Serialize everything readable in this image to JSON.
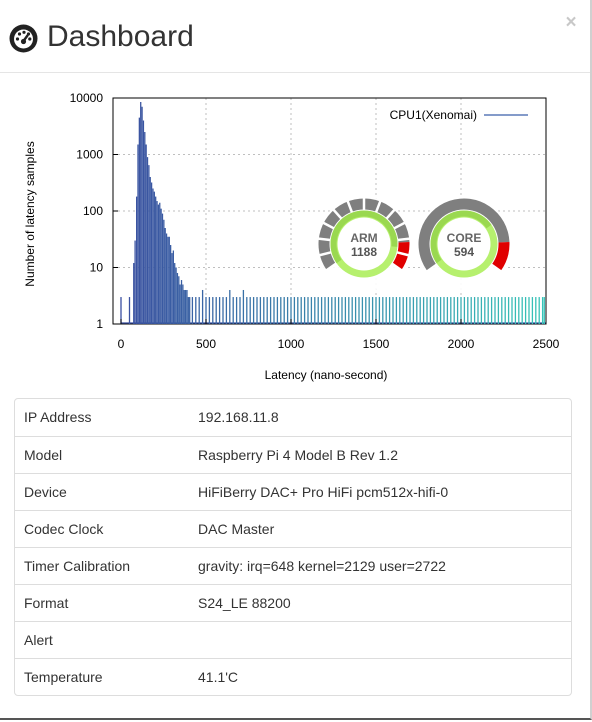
{
  "header": {
    "title": "Dashboard",
    "close_glyph": "×",
    "icon": "dashboard-icon"
  },
  "chart_data": {
    "type": "bar",
    "xlabel": "Latency (nano-second)",
    "ylabel": "Number of latency samples",
    "xlim": [
      0,
      2500
    ],
    "ylim": [
      1,
      10000
    ],
    "yscale": "log",
    "grid": true,
    "legend_position": "top-right",
    "xticks": [
      "0",
      "500",
      "1000",
      "1500",
      "2000",
      "2500"
    ],
    "yticks": [
      "1",
      "10",
      "100",
      "1000",
      "10000"
    ],
    "series": [
      {
        "name": "CPU1(Xenomai)",
        "color_start": "#3a4fa0",
        "color_end": "#37c4b8",
        "points": [
          [
            0,
            3
          ],
          [
            50,
            3
          ],
          [
            75,
            12
          ],
          [
            83,
            30
          ],
          [
            92,
            180
          ],
          [
            100,
            1500
          ],
          [
            108,
            4500
          ],
          [
            116,
            8500
          ],
          [
            124,
            7000
          ],
          [
            132,
            4000
          ],
          [
            140,
            2500
          ],
          [
            148,
            1500
          ],
          [
            156,
            900
          ],
          [
            164,
            650
          ],
          [
            172,
            400
          ],
          [
            180,
            320
          ],
          [
            188,
            250
          ],
          [
            196,
            220
          ],
          [
            204,
            180
          ],
          [
            212,
            150
          ],
          [
            220,
            130
          ],
          [
            228,
            140
          ],
          [
            236,
            110
          ],
          [
            244,
            90
          ],
          [
            252,
            70
          ],
          [
            260,
            50
          ],
          [
            268,
            40
          ],
          [
            276,
            35
          ],
          [
            284,
            35
          ],
          [
            292,
            25
          ],
          [
            300,
            18
          ],
          [
            308,
            20
          ],
          [
            316,
            12
          ],
          [
            324,
            10
          ],
          [
            332,
            8
          ],
          [
            340,
            7
          ],
          [
            348,
            5
          ],
          [
            356,
            6
          ],
          [
            364,
            5
          ],
          [
            372,
            4
          ],
          [
            380,
            4
          ],
          [
            388,
            4
          ],
          [
            396,
            3
          ],
          [
            404,
            3
          ],
          [
            420,
            3
          ],
          [
            440,
            3
          ],
          [
            460,
            3
          ],
          [
            480,
            4
          ],
          [
            500,
            3
          ],
          [
            520,
            3
          ],
          [
            540,
            3
          ],
          [
            560,
            3
          ],
          [
            580,
            3
          ],
          [
            600,
            3
          ],
          [
            620,
            3
          ],
          [
            640,
            4
          ],
          [
            660,
            3
          ],
          [
            680,
            3
          ],
          [
            700,
            3
          ],
          [
            720,
            4
          ],
          [
            740,
            3
          ],
          [
            760,
            3
          ],
          [
            780,
            3
          ],
          [
            800,
            3
          ],
          [
            820,
            3
          ],
          [
            840,
            3
          ],
          [
            860,
            3
          ],
          [
            880,
            3
          ],
          [
            900,
            3
          ],
          [
            920,
            3
          ],
          [
            940,
            3
          ],
          [
            960,
            3
          ],
          [
            980,
            3
          ],
          [
            1000,
            3
          ],
          [
            1020,
            3
          ],
          [
            1040,
            3
          ],
          [
            1060,
            3
          ],
          [
            1080,
            3
          ],
          [
            1100,
            3
          ],
          [
            1120,
            3
          ],
          [
            1140,
            3
          ],
          [
            1160,
            3
          ],
          [
            1180,
            3
          ],
          [
            1200,
            3
          ],
          [
            1220,
            3
          ],
          [
            1240,
            3
          ],
          [
            1260,
            3
          ],
          [
            1280,
            3
          ],
          [
            1300,
            3
          ],
          [
            1320,
            3
          ],
          [
            1340,
            3
          ],
          [
            1360,
            3
          ],
          [
            1380,
            3
          ],
          [
            1400,
            3
          ],
          [
            1420,
            3
          ],
          [
            1440,
            3
          ],
          [
            1460,
            3
          ],
          [
            1480,
            3
          ],
          [
            1500,
            3
          ],
          [
            1520,
            3
          ],
          [
            1540,
            3
          ],
          [
            1560,
            3
          ],
          [
            1580,
            3
          ],
          [
            1600,
            3
          ],
          [
            1620,
            3
          ],
          [
            1640,
            3
          ],
          [
            1660,
            3
          ],
          [
            1680,
            3
          ],
          [
            1700,
            3
          ],
          [
            1720,
            3
          ],
          [
            1740,
            3
          ],
          [
            1760,
            3
          ],
          [
            1780,
            3
          ],
          [
            1800,
            3
          ],
          [
            1820,
            3
          ],
          [
            1840,
            3
          ],
          [
            1860,
            3
          ],
          [
            1880,
            3
          ],
          [
            1900,
            3
          ],
          [
            1920,
            3
          ],
          [
            1940,
            3
          ],
          [
            1960,
            3
          ],
          [
            1980,
            3
          ],
          [
            2000,
            3
          ],
          [
            2020,
            3
          ],
          [
            2040,
            3
          ],
          [
            2060,
            3
          ],
          [
            2080,
            3
          ],
          [
            2100,
            3
          ],
          [
            2120,
            3
          ],
          [
            2140,
            3
          ],
          [
            2160,
            3
          ],
          [
            2180,
            3
          ],
          [
            2200,
            3
          ],
          [
            2220,
            3
          ],
          [
            2240,
            3
          ],
          [
            2260,
            3
          ],
          [
            2280,
            3
          ],
          [
            2300,
            3
          ],
          [
            2320,
            3
          ],
          [
            2340,
            3
          ],
          [
            2360,
            3
          ],
          [
            2380,
            3
          ],
          [
            2400,
            3
          ],
          [
            2420,
            3
          ],
          [
            2440,
            3
          ],
          [
            2460,
            3
          ],
          [
            2480,
            3
          ],
          [
            2490,
            3
          ]
        ]
      }
    ],
    "gauges": [
      {
        "label": "ARM",
        "value": "1188",
        "fraction": 0.88,
        "style": "segmented"
      },
      {
        "label": "CORE",
        "value": "594",
        "fraction": 0.72,
        "style": "solid"
      }
    ],
    "colors": {
      "gauge_green": "#b6f06e",
      "gauge_gray": "#7f7f7f",
      "gauge_red": "#e00000",
      "grid": "#bfbfbf"
    }
  },
  "info": {
    "rows": [
      {
        "key": "IP Address",
        "value": "192.168.11.8"
      },
      {
        "key": "Model",
        "value": "Raspberry Pi 4 Model B Rev 1.2"
      },
      {
        "key": "Device",
        "value": "HiFiBerry DAC+ Pro HiFi pcm512x-hifi-0"
      },
      {
        "key": "Codec Clock",
        "value": "DAC Master"
      },
      {
        "key": "Timer Calibration",
        "value": "gravity: irq=648 kernel=2129 user=2722"
      },
      {
        "key": "Format",
        "value": "S24_LE 88200"
      },
      {
        "key": "Alert",
        "value": ""
      },
      {
        "key": "Temperature",
        "value": "41.1'C"
      }
    ]
  }
}
